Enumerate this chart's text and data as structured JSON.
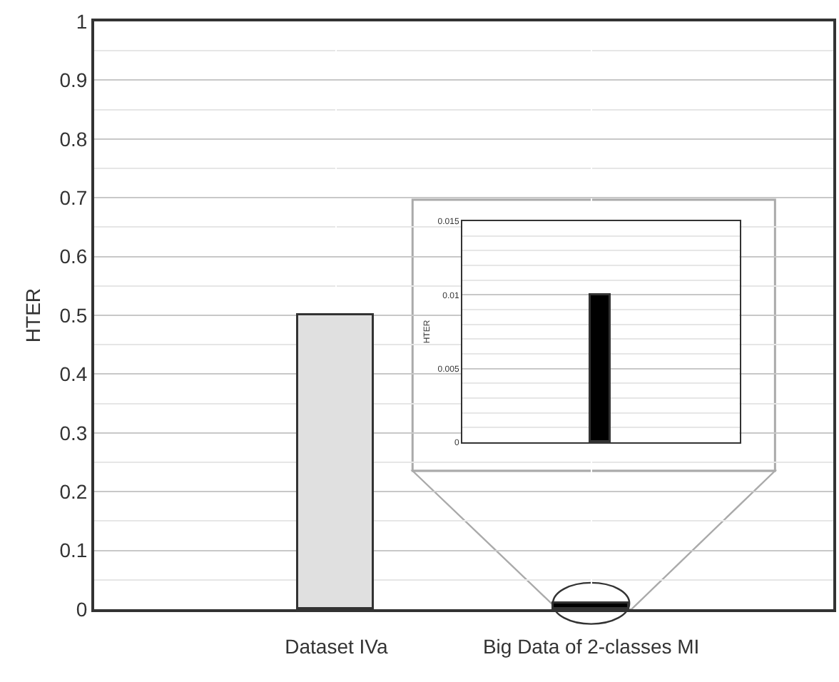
{
  "chart_data": [
    {
      "type": "bar",
      "ylabel": "HTER",
      "categories": [
        "Dataset IVa",
        "Big Data of 2-classes MI"
      ],
      "values": [
        0.5,
        0.01
      ],
      "colors": [
        "#e0e0e0",
        "#000000"
      ],
      "ylim": [
        0,
        1
      ],
      "yticks": [
        0,
        0.1,
        0.2,
        0.3,
        0.4,
        0.5,
        0.6,
        0.7,
        0.8,
        0.9,
        1
      ],
      "grid": true
    },
    {
      "type": "bar",
      "ylabel": "HTER",
      "categories": [
        null
      ],
      "values": [
        0.01
      ],
      "colors": [
        "#000000"
      ],
      "ylim": [
        0,
        0.015
      ],
      "yticks": [
        0,
        0.005,
        0.01,
        0.015
      ],
      "grid": true
    }
  ]
}
